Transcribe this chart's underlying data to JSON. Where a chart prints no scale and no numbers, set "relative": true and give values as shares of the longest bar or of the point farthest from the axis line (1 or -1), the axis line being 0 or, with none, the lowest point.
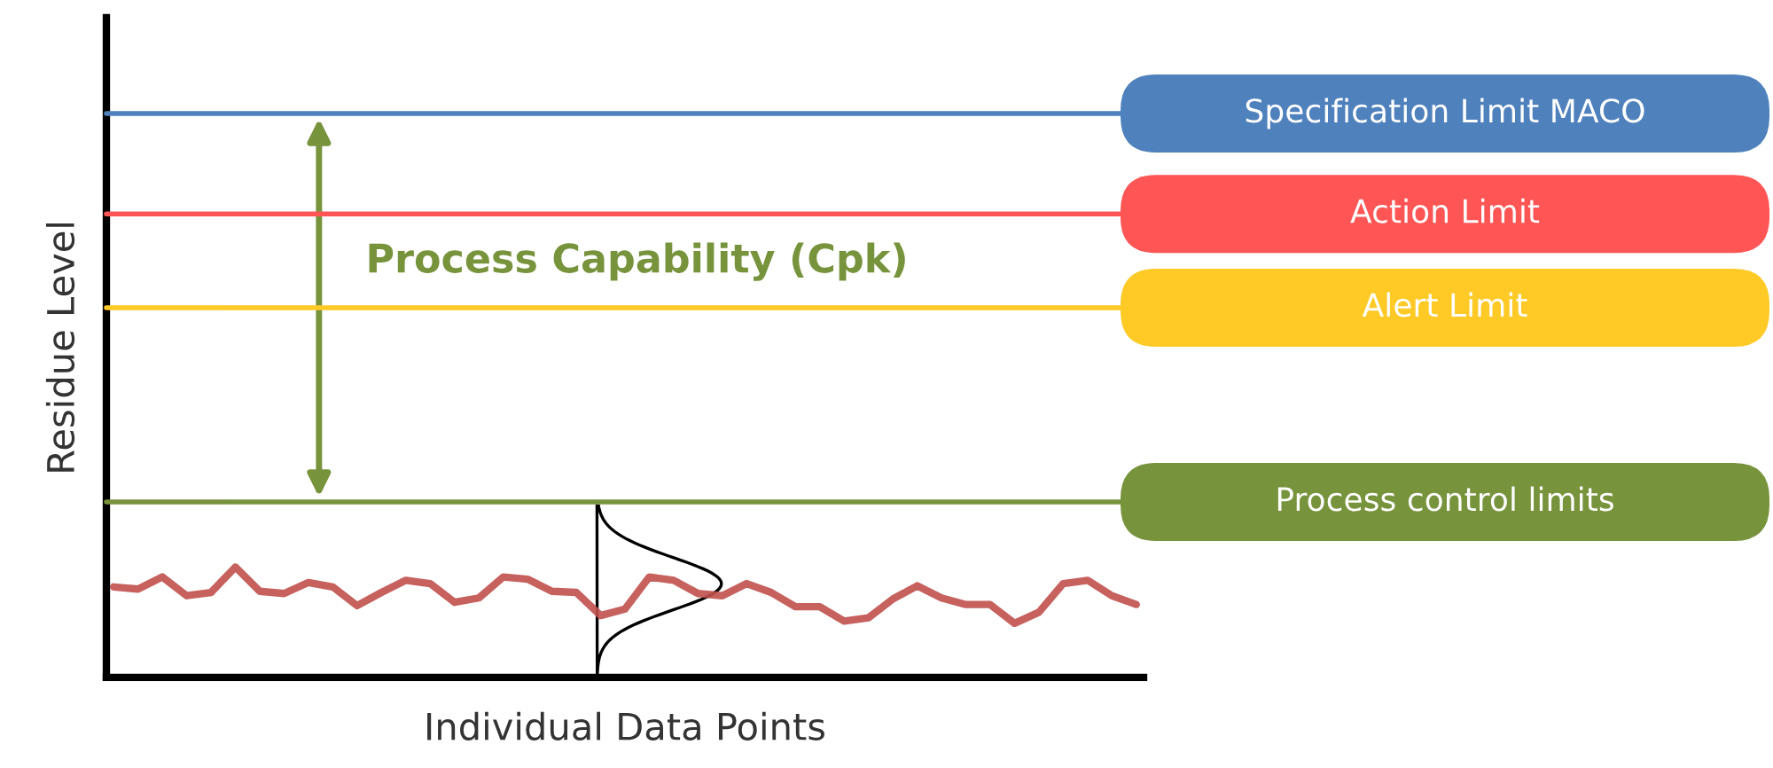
{
  "chart_data": {
    "type": "line",
    "relative": true,
    "xlabel": "Individual Data Points",
    "ylabel": "Residue Level",
    "categories": [
      null,
      null,
      null,
      null,
      null,
      null,
      null,
      null,
      null,
      null,
      null,
      null,
      null,
      null,
      null,
      null,
      null,
      null,
      null,
      null,
      null,
      null,
      null,
      null,
      null,
      null,
      null,
      null,
      null,
      null,
      null,
      null,
      null,
      null,
      null,
      null,
      null,
      null,
      null,
      null,
      null,
      null,
      null
    ],
    "series": [
      {
        "color": "#c0504d",
        "values": [
          0.82,
          0.8,
          0.91,
          0.74,
          0.77,
          1.0,
          0.78,
          0.76,
          0.86,
          0.82,
          0.65,
          0.77,
          0.88,
          0.85,
          0.68,
          0.72,
          0.91,
          0.89,
          0.78,
          0.77,
          0.56,
          0.62,
          0.91,
          0.88,
          0.76,
          0.74,
          0.85,
          0.77,
          0.64,
          0.64,
          0.51,
          0.54,
          0.71,
          0.83,
          0.72,
          0.66,
          0.66,
          0.49,
          0.59,
          0.85,
          0.88,
          0.74,
          0.66
        ]
      }
    ],
    "ref_lines": [
      {
        "axis": "y",
        "value": 5.11,
        "label": "Specification Limit MACO",
        "color": "#4f81bd"
      },
      {
        "axis": "y",
        "value": 4.2,
        "label": "Action Limit",
        "color": "#ff5555"
      },
      {
        "axis": "y",
        "value": 3.35,
        "label": "Alert Limit",
        "color": "#ffc926"
      },
      {
        "axis": "y",
        "value": 1.59,
        "label": "Process control limits",
        "color": "#77933c"
      }
    ],
    "annotations": [
      "Process Capability (Cpk)"
    ],
    "legend": false,
    "marker": "none",
    "line_style": "solid"
  }
}
